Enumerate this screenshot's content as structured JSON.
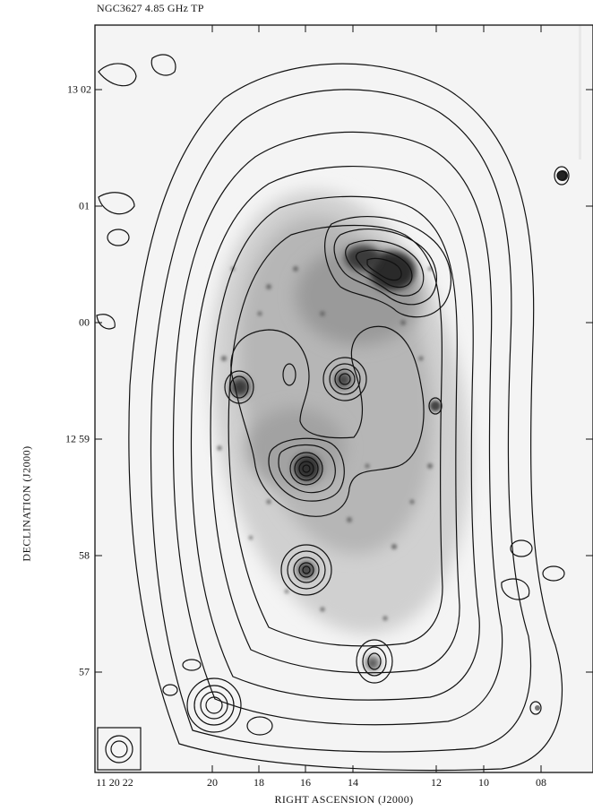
{
  "chart_data": {
    "type": "heatmap",
    "title": "NGC3627 4.85 GHz TP",
    "xlabel": "RIGHT ASCENSION (J2000)",
    "ylabel": "DECLINATION (J2000)",
    "x_ticks": [
      "11 20 22",
      "20",
      "18",
      "16",
      "14",
      "12",
      "10",
      "08"
    ],
    "y_ticks": [
      "13 02",
      "01",
      "00",
      "12 59",
      "58",
      "57"
    ],
    "legend": "none",
    "grid": false,
    "overlay": "radio continuum contours on greyscale optical image",
    "colormap": "greyscale"
  }
}
